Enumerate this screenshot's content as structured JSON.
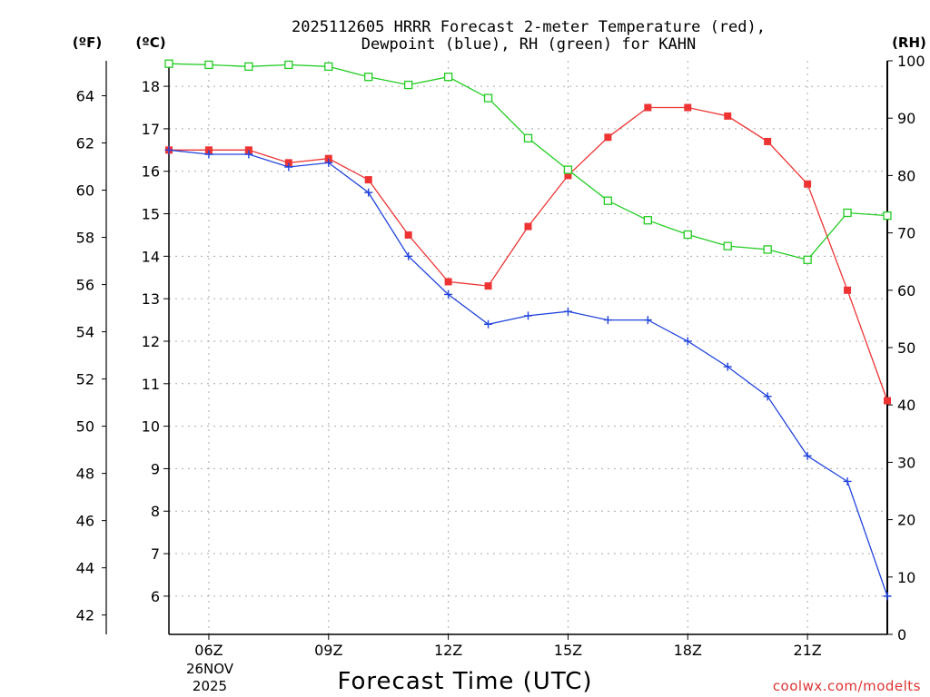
{
  "chart_data": {
    "type": "line",
    "title_line1": "2025112605 HRRR Forecast 2-meter Temperature (red),",
    "title_line2": "Dewpoint (blue), RH (green) for KAHN",
    "xlabel": "Forecast Time (UTC)",
    "watermark": "coolwx.com/modelts",
    "left_axis_f_label": "(ºF)",
    "left_axis_c_label": "(ºC)",
    "right_axis_label": "(RH)",
    "date_label_line1": "26NOV",
    "date_label_line2": "2025",
    "x_range_hours": [
      5,
      23
    ],
    "x_ticks": [
      {
        "hour": 6,
        "label": "06Z"
      },
      {
        "hour": 9,
        "label": "09Z"
      },
      {
        "hour": 12,
        "label": "12Z"
      },
      {
        "hour": 15,
        "label": "15Z"
      },
      {
        "hour": 18,
        "label": "18Z"
      },
      {
        "hour": 21,
        "label": "21Z"
      }
    ],
    "celsius_range": [
      5.1,
      18.6
    ],
    "celsius_ticks": [
      6,
      7,
      8,
      9,
      10,
      11,
      12,
      13,
      14,
      15,
      16,
      17,
      18
    ],
    "fahrenheit_ticks": [
      42,
      44,
      46,
      48,
      50,
      52,
      54,
      56,
      58,
      60,
      62,
      64
    ],
    "rh_range": [
      0,
      100
    ],
    "rh_ticks": [
      0,
      10,
      20,
      30,
      40,
      50,
      60,
      70,
      80,
      90,
      100
    ],
    "x_hours": [
      5,
      6,
      7,
      8,
      9,
      10,
      11,
      12,
      13,
      14,
      15,
      16,
      17,
      18,
      19,
      20,
      21,
      22,
      23
    ],
    "series": [
      {
        "name": "Temperature",
        "axis": "celsius",
        "color": "#ee3333",
        "marker": "filled-square",
        "values": [
          16.5,
          16.5,
          16.5,
          16.2,
          16.3,
          15.8,
          14.5,
          13.4,
          13.3,
          14.7,
          15.9,
          16.8,
          17.5,
          17.5,
          17.3,
          16.7,
          15.7,
          13.2,
          10.6
        ]
      },
      {
        "name": "Dewpoint",
        "axis": "celsius",
        "color": "#2244dd",
        "marker": "plus",
        "values": [
          16.5,
          16.4,
          16.4,
          16.1,
          16.2,
          15.5,
          14.0,
          13.1,
          12.4,
          12.6,
          12.7,
          12.5,
          12.5,
          12.0,
          11.4,
          10.7,
          9.3,
          8.7,
          6.0
        ]
      },
      {
        "name": "RH",
        "axis": "rh",
        "color": "#22cc22",
        "marker": "open-square",
        "values": [
          99.5,
          99.3,
          99.0,
          99.3,
          99.0,
          97.2,
          95.8,
          97.2,
          93.5,
          86.5,
          81.0,
          75.6,
          72.2,
          69.7,
          67.7,
          67.1,
          65.3,
          73.5,
          73.0
        ]
      }
    ]
  }
}
